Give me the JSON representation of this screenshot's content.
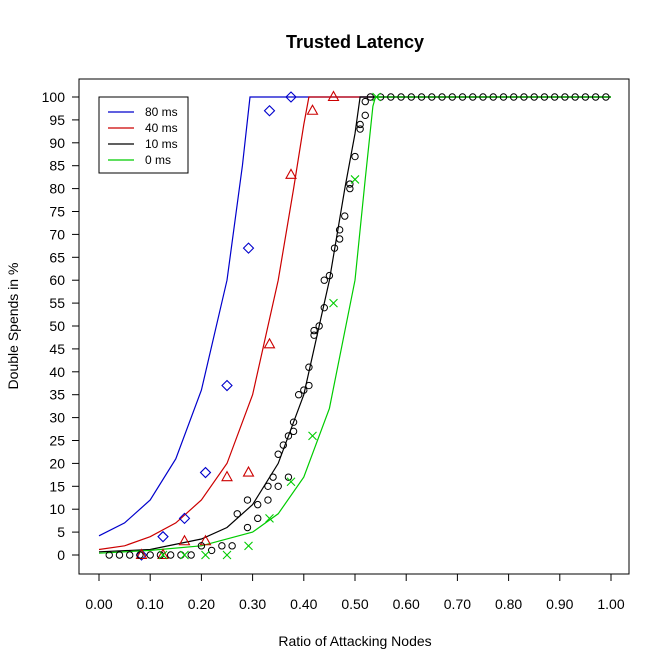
{
  "chart_data": {
    "type": "scatter",
    "title": "Trusted Latency",
    "xlabel": "Ratio of Attacking Nodes",
    "ylabel": "Double Spends in %",
    "xlim": [
      0,
      1
    ],
    "ylim": [
      0,
      100
    ],
    "xticks": [
      "0.00",
      "0.10",
      "0.20",
      "0.30",
      "0.40",
      "0.50",
      "0.60",
      "0.70",
      "0.80",
      "0.90",
      "1.00"
    ],
    "xtick_values": [
      0,
      0.1,
      0.2,
      0.3,
      0.4,
      0.5,
      0.6,
      0.7,
      0.8,
      0.9,
      1.0
    ],
    "yticks": [
      "0",
      "5",
      "10",
      "15",
      "20",
      "25",
      "30",
      "35",
      "40",
      "45",
      "50",
      "55",
      "60",
      "65",
      "70",
      "75",
      "80",
      "85",
      "90",
      "95",
      "100"
    ],
    "ytick_values": [
      0,
      5,
      10,
      15,
      20,
      25,
      30,
      35,
      40,
      45,
      50,
      55,
      60,
      65,
      70,
      75,
      80,
      85,
      90,
      95,
      100
    ],
    "grid": false,
    "legend_position": "top-left",
    "series": [
      {
        "name": "80 ms",
        "color": "#0000cc",
        "marker": "diamond",
        "points": [
          [
            0.083,
            0
          ],
          [
            0.125,
            4
          ],
          [
            0.167,
            8
          ],
          [
            0.208,
            18
          ],
          [
            0.25,
            37
          ],
          [
            0.292,
            67
          ],
          [
            0.333,
            97
          ],
          [
            0.375,
            100
          ]
        ],
        "curve": [
          [
            0.0,
            4.2
          ],
          [
            0.05,
            7
          ],
          [
            0.1,
            12
          ],
          [
            0.15,
            21
          ],
          [
            0.2,
            36
          ],
          [
            0.25,
            60
          ],
          [
            0.28,
            85
          ],
          [
            0.295,
            100
          ],
          [
            1.0,
            100
          ]
        ]
      },
      {
        "name": "40 ms",
        "color": "#cc0000",
        "marker": "triangle",
        "points": [
          [
            0.083,
            0
          ],
          [
            0.125,
            0
          ],
          [
            0.167,
            3
          ],
          [
            0.208,
            3
          ],
          [
            0.25,
            17
          ],
          [
            0.292,
            18
          ],
          [
            0.333,
            46
          ],
          [
            0.375,
            83
          ],
          [
            0.417,
            97
          ],
          [
            0.458,
            100
          ]
        ],
        "curve": [
          [
            0.0,
            1.2
          ],
          [
            0.05,
            2
          ],
          [
            0.1,
            4
          ],
          [
            0.15,
            7
          ],
          [
            0.2,
            12
          ],
          [
            0.25,
            20
          ],
          [
            0.3,
            35
          ],
          [
            0.35,
            60
          ],
          [
            0.38,
            80
          ],
          [
            0.4,
            94
          ],
          [
            0.41,
            100
          ],
          [
            1.0,
            100
          ]
        ]
      },
      {
        "name": "10 ms",
        "color": "#000000",
        "marker": "circle",
        "points": [
          [
            0.02,
            0
          ],
          [
            0.04,
            0
          ],
          [
            0.06,
            0
          ],
          [
            0.08,
            0
          ],
          [
            0.1,
            0
          ],
          [
            0.12,
            0
          ],
          [
            0.14,
            0
          ],
          [
            0.16,
            0
          ],
          [
            0.18,
            0
          ],
          [
            0.2,
            2
          ],
          [
            0.22,
            1
          ],
          [
            0.24,
            2
          ],
          [
            0.26,
            2
          ],
          [
            0.27,
            9
          ],
          [
            0.29,
            12
          ],
          [
            0.29,
            6
          ],
          [
            0.31,
            8
          ],
          [
            0.31,
            11
          ],
          [
            0.33,
            12
          ],
          [
            0.33,
            15
          ],
          [
            0.34,
            17
          ],
          [
            0.35,
            15
          ],
          [
            0.35,
            22
          ],
          [
            0.36,
            24
          ],
          [
            0.37,
            17
          ],
          [
            0.37,
            26
          ],
          [
            0.38,
            27
          ],
          [
            0.38,
            29
          ],
          [
            0.39,
            35
          ],
          [
            0.4,
            36
          ],
          [
            0.41,
            37
          ],
          [
            0.41,
            41
          ],
          [
            0.42,
            48
          ],
          [
            0.42,
            49
          ],
          [
            0.43,
            50
          ],
          [
            0.44,
            54
          ],
          [
            0.44,
            60
          ],
          [
            0.45,
            61
          ],
          [
            0.46,
            67
          ],
          [
            0.47,
            69
          ],
          [
            0.47,
            71
          ],
          [
            0.48,
            74
          ],
          [
            0.49,
            80
          ],
          [
            0.49,
            81
          ],
          [
            0.5,
            87
          ],
          [
            0.51,
            93
          ],
          [
            0.51,
            94
          ],
          [
            0.52,
            96
          ],
          [
            0.52,
            99
          ],
          [
            0.53,
            100
          ],
          [
            0.55,
            100
          ],
          [
            0.57,
            100
          ],
          [
            0.59,
            100
          ],
          [
            0.61,
            100
          ],
          [
            0.63,
            100
          ],
          [
            0.65,
            100
          ],
          [
            0.67,
            100
          ],
          [
            0.69,
            100
          ],
          [
            0.71,
            100
          ],
          [
            0.73,
            100
          ],
          [
            0.75,
            100
          ],
          [
            0.77,
            100
          ],
          [
            0.79,
            100
          ],
          [
            0.81,
            100
          ],
          [
            0.83,
            100
          ],
          [
            0.85,
            100
          ],
          [
            0.87,
            100
          ],
          [
            0.89,
            100
          ],
          [
            0.91,
            100
          ],
          [
            0.93,
            100
          ],
          [
            0.95,
            100
          ],
          [
            0.97,
            100
          ],
          [
            0.99,
            100
          ]
        ],
        "curve": [
          [
            0.0,
            0.7
          ],
          [
            0.1,
            1.2
          ],
          [
            0.2,
            3.5
          ],
          [
            0.25,
            6
          ],
          [
            0.3,
            11
          ],
          [
            0.35,
            20
          ],
          [
            0.4,
            35
          ],
          [
            0.45,
            60
          ],
          [
            0.48,
            80
          ],
          [
            0.5,
            92
          ],
          [
            0.51,
            100
          ],
          [
            1.0,
            100
          ]
        ]
      },
      {
        "name": "0 ms",
        "color": "#00cc00",
        "marker": "x",
        "points": [
          [
            0.125,
            0
          ],
          [
            0.167,
            0
          ],
          [
            0.208,
            0
          ],
          [
            0.25,
            0
          ],
          [
            0.292,
            2
          ],
          [
            0.333,
            8
          ],
          [
            0.375,
            16
          ],
          [
            0.417,
            26
          ],
          [
            0.458,
            55
          ],
          [
            0.5,
            82
          ],
          [
            0.542,
            100
          ]
        ],
        "curve": [
          [
            0.0,
            0.4
          ],
          [
            0.1,
            1
          ],
          [
            0.2,
            2
          ],
          [
            0.3,
            5
          ],
          [
            0.35,
            9
          ],
          [
            0.4,
            17
          ],
          [
            0.45,
            32
          ],
          [
            0.5,
            60
          ],
          [
            0.52,
            82
          ],
          [
            0.535,
            98
          ],
          [
            0.54,
            100
          ],
          [
            1.0,
            100
          ]
        ]
      }
    ]
  }
}
